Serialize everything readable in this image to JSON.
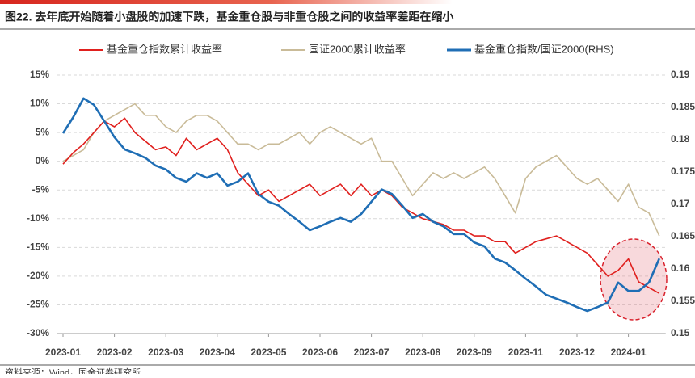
{
  "chart_data": {
    "type": "line",
    "title": "图22. 去年底开始随着小盘股的加速下跌，基金重仓股与非重仓股之间的收益率差距在缩小",
    "source": "资料来源：Wind，国金证券研究所",
    "categories": [
      "2023-01",
      null,
      null,
      null,
      null,
      "2023-02",
      null,
      null,
      null,
      null,
      "2023-03",
      null,
      null,
      null,
      null,
      "2023-04",
      null,
      null,
      null,
      null,
      "2023-05",
      null,
      null,
      null,
      null,
      "2023-06",
      null,
      null,
      null,
      null,
      "2023-07",
      null,
      null,
      null,
      null,
      "2023-08",
      null,
      null,
      null,
      null,
      "2023-09",
      null,
      null,
      null,
      null,
      "2023-11",
      null,
      null,
      null,
      null,
      "2023-12",
      null,
      null,
      null,
      null,
      "2024-01",
      null,
      null,
      null
    ],
    "series": [
      {
        "name": "基金重仓指数累计收益率",
        "color": "#e0201e",
        "values": [
          -0.5,
          1.5,
          3,
          5,
          7,
          6,
          7.5,
          5,
          3.5,
          2,
          2.5,
          1,
          4,
          2,
          3,
          4,
          2,
          -2,
          -4,
          -6,
          -5,
          -7,
          -6,
          -5,
          -4,
          -6,
          -5,
          -4,
          -6,
          -4,
          -6,
          -5,
          -6,
          -8,
          -9,
          -10,
          -10.5,
          -11,
          -12,
          -12,
          -13,
          -13,
          -14,
          -14,
          -16,
          -15,
          -14,
          -13.5,
          -13,
          -14,
          -15,
          -16,
          -18,
          -20,
          -19,
          -17,
          -21,
          -22,
          -23
        ]
      },
      {
        "name": "国证2000累计收益率",
        "color": "#c9bb98",
        "values": [
          0,
          1,
          2,
          5,
          7,
          8,
          9,
          10,
          8,
          8,
          6,
          5,
          7,
          8,
          8,
          7,
          5,
          3,
          3,
          2,
          3,
          3,
          4,
          5,
          3,
          5,
          6,
          5,
          4,
          3,
          4,
          0,
          0,
          -3,
          -6,
          -4,
          -2,
          -3,
          -2,
          -3,
          -2,
          -1,
          -3,
          -6,
          -9,
          -3,
          -1,
          0,
          1,
          -1,
          -3,
          -4,
          -3,
          -5,
          -7,
          -4,
          -8,
          -9,
          -13
        ]
      },
      {
        "name": "基金重仓指数/国证2000(RHS)",
        "color": "#1f6eb5",
        "axis": "y2",
        "values": [
          0.181,
          0.1835,
          0.1864,
          0.1854,
          0.1829,
          0.1804,
          0.1785,
          0.1779,
          0.1772,
          0.176,
          0.1754,
          0.1741,
          0.1735,
          0.1748,
          0.1741,
          0.1748,
          0.1729,
          0.1735,
          0.1748,
          0.1716,
          0.1704,
          0.1698,
          0.1685,
          0.1673,
          0.166,
          0.1666,
          0.1673,
          0.1679,
          0.1673,
          0.1685,
          0.1704,
          0.1723,
          0.1716,
          0.1698,
          0.1679,
          0.1685,
          0.1673,
          0.1666,
          0.1654,
          0.1654,
          0.1641,
          0.1635,
          0.1616,
          0.161,
          0.1598,
          0.1585,
          0.1573,
          0.156,
          0.1554,
          0.1548,
          0.1541,
          0.1535,
          0.1541,
          0.1548,
          0.1579,
          0.1566,
          0.1566,
          0.1579,
          0.1616
        ]
      }
    ],
    "ylim": [
      -30,
      15
    ],
    "yticks": [
      {
        "value": -30,
        "label": "-30%"
      },
      {
        "value": -25,
        "label": "-25%"
      },
      {
        "value": -20,
        "label": "-20%"
      },
      {
        "value": -15,
        "label": "-15%"
      },
      {
        "value": -10,
        "label": "-10%"
      },
      {
        "value": -5,
        "label": "-5%"
      },
      {
        "value": 0,
        "label": "0%"
      },
      {
        "value": 5,
        "label": "5%"
      },
      {
        "value": 10,
        "label": "10%"
      },
      {
        "value": 15,
        "label": "15%"
      }
    ],
    "y2lim": [
      0.15,
      0.19
    ],
    "y2ticks": [
      0.15,
      0.155,
      0.16,
      0.165,
      0.17,
      0.175,
      0.18,
      0.185,
      0.19
    ],
    "grid": true,
    "legend": "top"
  }
}
